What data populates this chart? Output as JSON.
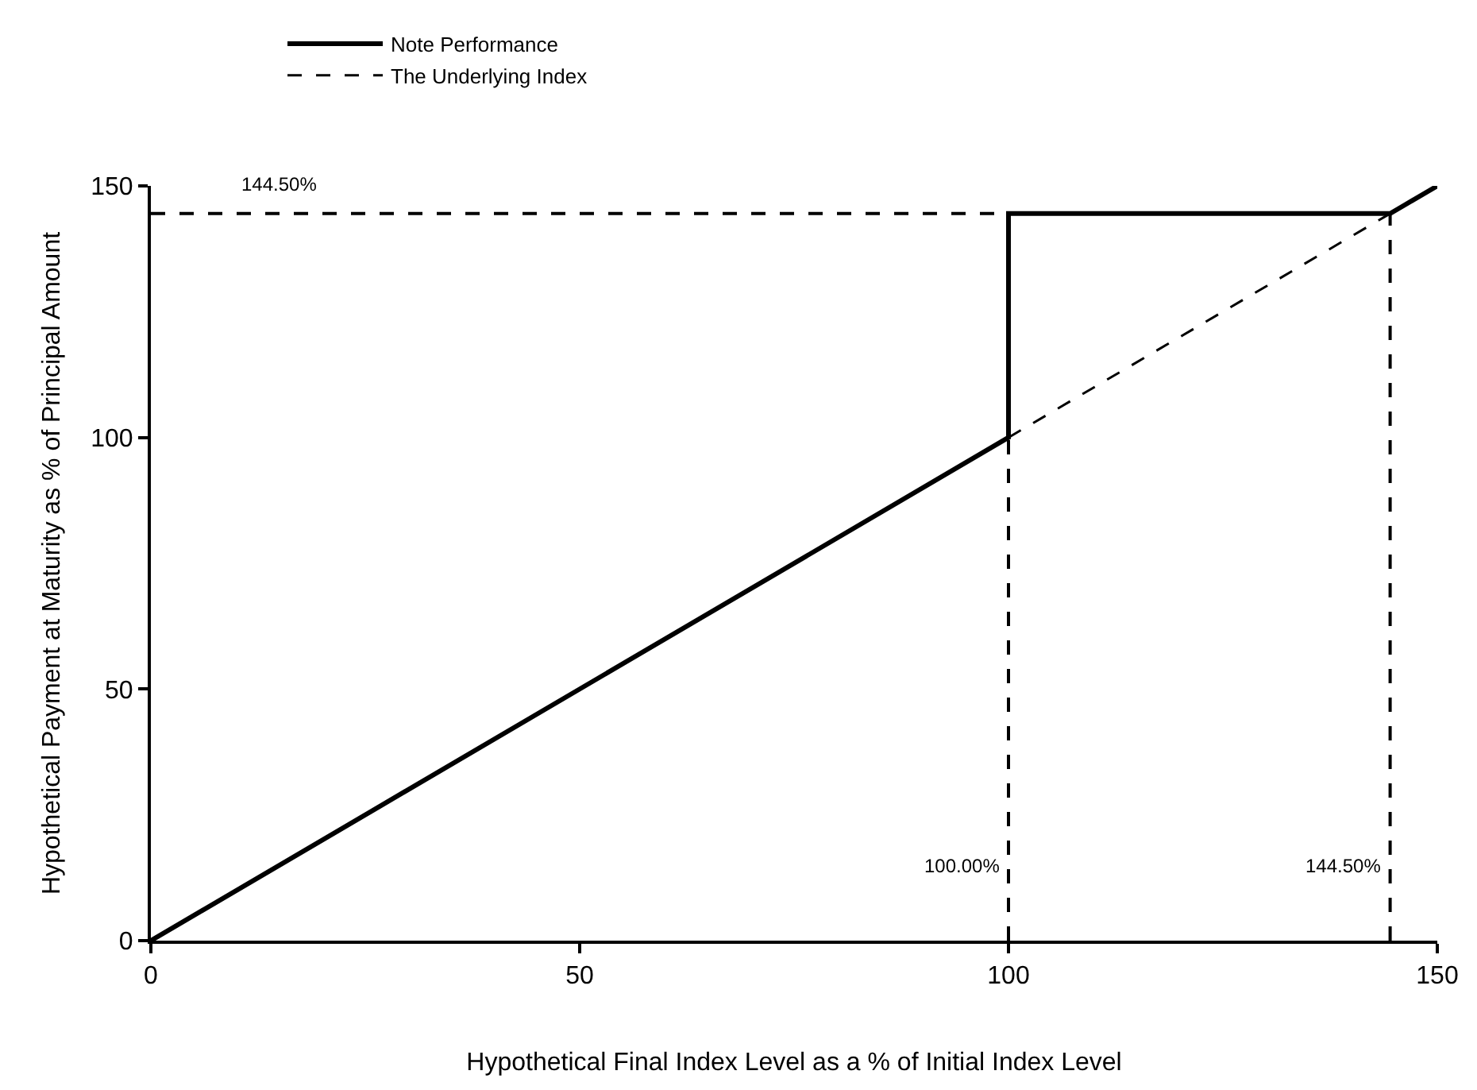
{
  "chart_data": {
    "type": "line",
    "xlabel": "Hypothetical Final Index Level as a % of Initial Index Level",
    "ylabel": "Hypothetical Payment at Maturity as % of Principal Amount",
    "series": [
      {
        "name": "Note Performance",
        "color": "#000000",
        "line_style": "solid",
        "x": [
          0,
          100,
          100,
          144.5,
          150
        ],
        "values": [
          0,
          100,
          144.5,
          144.5,
          150
        ]
      },
      {
        "name": "The Underlying Index",
        "color": "#000000",
        "line_style": "dashed",
        "x": [
          100,
          144.5
        ],
        "values": [
          100,
          144.5
        ]
      }
    ],
    "ref_lines": [
      {
        "axis": "y",
        "value": 144.5,
        "label": "144.50%",
        "line_style": "dashed"
      },
      {
        "axis": "x",
        "value": 100,
        "label": "100.00%",
        "line_style": "dashed"
      },
      {
        "axis": "x",
        "value": 144.5,
        "label": "144.50%",
        "line_style": "dashed"
      }
    ],
    "xlim": [
      0,
      150
    ],
    "xticks": [
      0,
      50,
      100,
      150
    ],
    "ylim": [
      0,
      150
    ],
    "yticks": [
      0,
      50,
      100,
      150
    ],
    "legend": "top left",
    "marker": "none"
  }
}
